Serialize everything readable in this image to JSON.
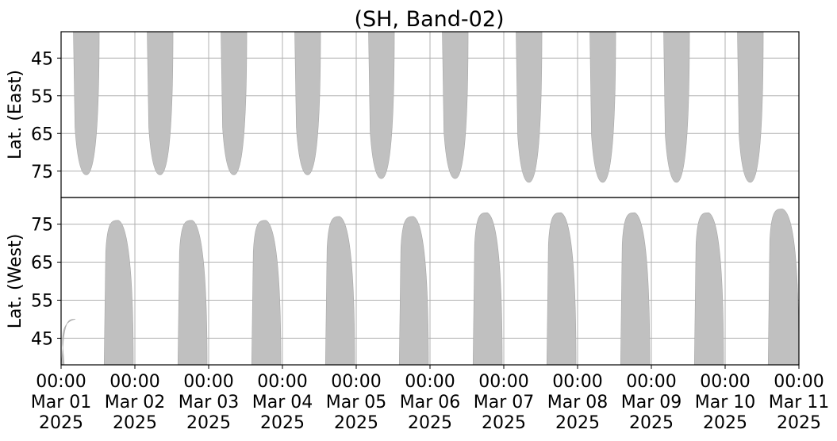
{
  "chart_data": {
    "type": "area",
    "title": "(SH, Band-02)",
    "x_ticks": [
      {
        "value": "2025-03-01 00:00",
        "lines": [
          "00:00",
          "Mar 01",
          "2025"
        ]
      },
      {
        "value": "2025-03-02 00:00",
        "lines": [
          "00:00",
          "Mar 02",
          "2025"
        ]
      },
      {
        "value": "2025-03-03 00:00",
        "lines": [
          "00:00",
          "Mar 03",
          "2025"
        ]
      },
      {
        "value": "2025-03-04 00:00",
        "lines": [
          "00:00",
          "Mar 04",
          "2025"
        ]
      },
      {
        "value": "2025-03-05 00:00",
        "lines": [
          "00:00",
          "Mar 05",
          "2025"
        ]
      },
      {
        "value": "2025-03-06 00:00",
        "lines": [
          "00:00",
          "Mar 06",
          "2025"
        ]
      },
      {
        "value": "2025-03-07 00:00",
        "lines": [
          "00:00",
          "Mar 07",
          "2025"
        ]
      },
      {
        "value": "2025-03-08 00:00",
        "lines": [
          "00:00",
          "Mar 08",
          "2025"
        ]
      },
      {
        "value": "2025-03-09 00:00",
        "lines": [
          "00:00",
          "Mar 09",
          "2025"
        ]
      },
      {
        "value": "2025-03-10 00:00",
        "lines": [
          "00:00",
          "Mar 10",
          "2025"
        ]
      },
      {
        "value": "2025-03-11 00:00",
        "lines": [
          "00:00",
          "Mar 11",
          "2025"
        ]
      }
    ],
    "xlim": [
      "2025-03-01 00:00",
      "2025-03-11 00:00"
    ],
    "fill_color": "#c0c0c0",
    "grid": true,
    "panels": [
      {
        "name": "east",
        "ylabel": "Lat. (East)",
        "ylim": [
          38,
          82
        ],
        "inverted": true,
        "yticks": [
          "45",
          "55",
          "65",
          "75"
        ],
        "passes": [
          {
            "start": "2025-03-01 04:00",
            "end": "2025-03-01 12:24",
            "max_lat": 76
          },
          {
            "start": "2025-03-02 04:00",
            "end": "2025-03-02 12:24",
            "max_lat": 76
          },
          {
            "start": "2025-03-03 04:00",
            "end": "2025-03-03 12:24",
            "max_lat": 76
          },
          {
            "start": "2025-03-04 04:00",
            "end": "2025-03-04 12:24",
            "max_lat": 76
          },
          {
            "start": "2025-03-05 04:00",
            "end": "2025-03-05 12:24",
            "max_lat": 77
          },
          {
            "start": "2025-03-06 04:00",
            "end": "2025-03-06 12:24",
            "max_lat": 77
          },
          {
            "start": "2025-03-07 04:00",
            "end": "2025-03-07 12:24",
            "max_lat": 78
          },
          {
            "start": "2025-03-08 04:00",
            "end": "2025-03-08 12:24",
            "max_lat": 78
          },
          {
            "start": "2025-03-09 04:00",
            "end": "2025-03-09 12:24",
            "max_lat": 78
          },
          {
            "start": "2025-03-10 04:00",
            "end": "2025-03-10 12:24",
            "max_lat": 78
          }
        ]
      },
      {
        "name": "west",
        "ylabel": "Lat. (West)",
        "ylim": [
          38,
          82
        ],
        "inverted": false,
        "yticks": [
          "45",
          "55",
          "65",
          "75"
        ],
        "passes": [
          {
            "start": "2025-03-01 00:00",
            "end": "2025-03-01 01:00",
            "max_lat": 50
          },
          {
            "start": "2025-03-01 14:00",
            "end": "2025-03-01 23:30",
            "max_lat": 76
          },
          {
            "start": "2025-03-02 14:00",
            "end": "2025-03-02 23:30",
            "max_lat": 76
          },
          {
            "start": "2025-03-03 14:00",
            "end": "2025-03-03 23:30",
            "max_lat": 76
          },
          {
            "start": "2025-03-04 14:00",
            "end": "2025-03-04 23:30",
            "max_lat": 77
          },
          {
            "start": "2025-03-05 14:00",
            "end": "2025-03-05 23:30",
            "max_lat": 77
          },
          {
            "start": "2025-03-06 14:00",
            "end": "2025-03-06 23:30",
            "max_lat": 78
          },
          {
            "start": "2025-03-07 14:00",
            "end": "2025-03-07 23:30",
            "max_lat": 78
          },
          {
            "start": "2025-03-08 14:00",
            "end": "2025-03-08 23:30",
            "max_lat": 78
          },
          {
            "start": "2025-03-09 14:00",
            "end": "2025-03-09 23:30",
            "max_lat": 78
          },
          {
            "start": "2025-03-10 14:00",
            "end": "2025-03-11 00:00",
            "max_lat": 79
          }
        ]
      }
    ]
  }
}
